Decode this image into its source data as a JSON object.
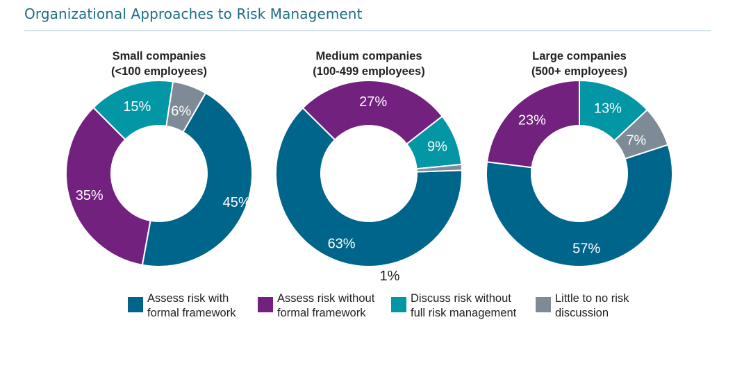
{
  "page_title": "Organizational Approaches to Risk Management",
  "colors": {
    "formal": "#00658a",
    "informal": "#72217f",
    "discuss": "#0397a6",
    "little": "#7e8b96",
    "title": "#1c6e84"
  },
  "legend": [
    {
      "key": "formal",
      "line1": "Assess risk with",
      "line2": "formal framework"
    },
    {
      "key": "informal",
      "line1": "Assess risk without",
      "line2": "formal framework"
    },
    {
      "key": "discuss",
      "line1": "Discuss risk without",
      "line2": "full risk management"
    },
    {
      "key": "little",
      "line1": "Little to no risk",
      "line2": "discussion"
    }
  ],
  "chart_data": [
    {
      "type": "pie",
      "title": [
        "Small companies",
        "(<100 employees)"
      ],
      "categories": [
        "Assess risk with formal framework",
        "Assess risk without formal framework",
        "Discuss risk without full risk management",
        "Little to no risk discussion"
      ],
      "values": [
        45,
        35,
        15,
        6
      ],
      "labels": [
        "45%",
        "35%",
        "15%",
        "6%"
      ]
    },
    {
      "type": "pie",
      "title": [
        "Medium companies",
        "(100-499 employees)"
      ],
      "categories": [
        "Assess risk with formal framework",
        "Assess risk without formal framework",
        "Discuss risk without full risk management",
        "Little to no risk discussion"
      ],
      "values": [
        63,
        27,
        9,
        1
      ],
      "labels": [
        "63%",
        "27%",
        "9%",
        "1%"
      ]
    },
    {
      "type": "pie",
      "title": [
        "Large companies",
        "(500+ employees)"
      ],
      "categories": [
        "Assess risk with formal framework",
        "Assess risk without formal framework",
        "Discuss risk without full risk management",
        "Little to no risk discussion"
      ],
      "values": [
        57,
        23,
        13,
        7
      ],
      "labels": [
        "57%",
        "23%",
        "13%",
        "7%"
      ]
    }
  ]
}
